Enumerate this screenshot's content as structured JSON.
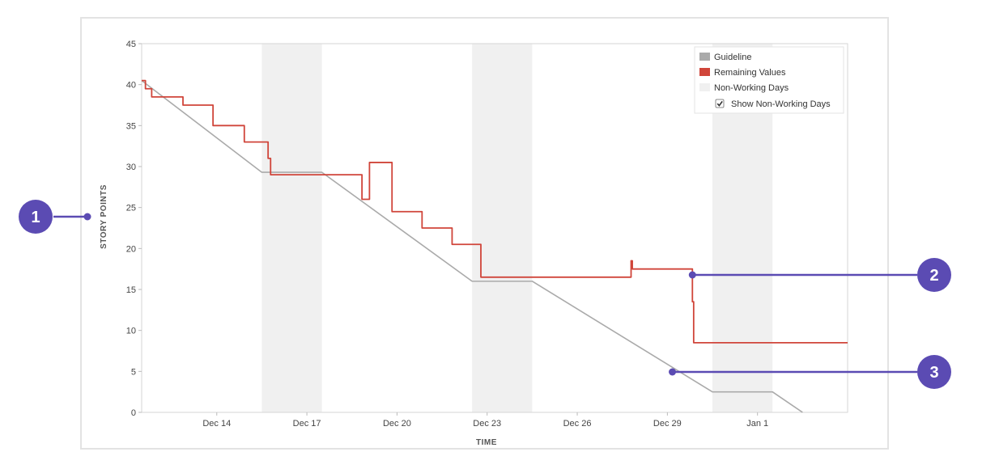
{
  "chart_data": {
    "type": "line",
    "title": "",
    "xlabel": "TIME",
    "ylabel": "STORY POINTS",
    "ylim": [
      0,
      45
    ],
    "yticks": [
      0,
      5,
      10,
      15,
      20,
      25,
      30,
      35,
      40,
      45
    ],
    "xlim": [
      "2019-12-11T12:00",
      "2020-01-04T00:00"
    ],
    "xtick_labels": [
      {
        "date": "2019-12-14",
        "label": "Dec 14"
      },
      {
        "date": "2019-12-17",
        "label": "Dec 17"
      },
      {
        "date": "2019-12-20",
        "label": "Dec 20"
      },
      {
        "date": "2019-12-23",
        "label": "Dec 23"
      },
      {
        "date": "2019-12-26",
        "label": "Dec 26"
      },
      {
        "date": "2019-12-29",
        "label": "Dec 29"
      },
      {
        "date": "2020-01-01",
        "label": "Jan 1"
      }
    ],
    "grid": false,
    "legend_position": "top-right",
    "non_working_days": [
      [
        "2019-12-15T12:00",
        "2019-12-17T12:00"
      ],
      [
        "2019-12-22T12:00",
        "2019-12-24T12:00"
      ],
      [
        "2019-12-30T12:00",
        "2020-01-01T12:00"
      ]
    ],
    "series": [
      {
        "name": "Guideline",
        "color": "#aaaaaa",
        "shape": "linear",
        "points": [
          [
            "2019-12-11T12:00",
            40.5
          ],
          [
            "2019-12-15T12:00",
            29.3
          ],
          [
            "2019-12-17T12:00",
            29.3
          ],
          [
            "2019-12-22T12:00",
            16.0
          ],
          [
            "2019-12-24T12:00",
            16.0
          ],
          [
            "2019-12-30T12:00",
            2.5
          ],
          [
            "2020-01-01T12:00",
            2.5
          ],
          [
            "2020-01-02T12:00",
            0
          ]
        ]
      },
      {
        "name": "Remaining Values",
        "color": "#d0453a",
        "shape": "step",
        "points": [
          [
            "2019-12-11T12:00",
            40.5
          ],
          [
            "2019-12-11T15:00",
            39.5
          ],
          [
            "2019-12-11T20:00",
            38.5
          ],
          [
            "2019-12-12T21:00",
            37.5
          ],
          [
            "2019-12-13T21:00",
            35.0
          ],
          [
            "2019-12-14T22:00",
            33.0
          ],
          [
            "2019-12-15T17:00",
            31.0
          ],
          [
            "2019-12-15T19:00",
            29.0
          ],
          [
            "2019-12-18T20:00",
            26.0
          ],
          [
            "2019-12-19T02:00",
            30.5
          ],
          [
            "2019-12-19T20:00",
            24.5
          ],
          [
            "2019-12-20T20:00",
            22.5
          ],
          [
            "2019-12-21T20:00",
            20.5
          ],
          [
            "2019-12-22T19:00",
            16.5
          ],
          [
            "2019-12-27T19:00",
            18.5
          ],
          [
            "2019-12-27T20:00",
            17.5
          ],
          [
            "2019-12-29T20:00",
            13.5
          ],
          [
            "2019-12-29T21:00",
            8.5
          ],
          [
            "2020-01-04T00:00",
            8.5
          ]
        ]
      }
    ],
    "legend": {
      "guideline": "Guideline",
      "remaining": "Remaining Values",
      "non_working": "Non-Working Days",
      "show_non_working": "Show Non-Working Days",
      "show_non_working_checked": true
    },
    "annotations": [
      {
        "label": "1",
        "target": "y-axis-label"
      },
      {
        "label": "2",
        "target": "remaining-values",
        "date": "2019-12-29T20:00",
        "value": 16.8
      },
      {
        "label": "3",
        "target": "guideline",
        "date": "2019-12-29T04:00",
        "value": 5.0
      }
    ]
  },
  "colors": {
    "guideline": "#aaaaaa",
    "remaining": "#d0453a",
    "non_working": "#f0f0f0",
    "callout": "#5b4bb3"
  }
}
